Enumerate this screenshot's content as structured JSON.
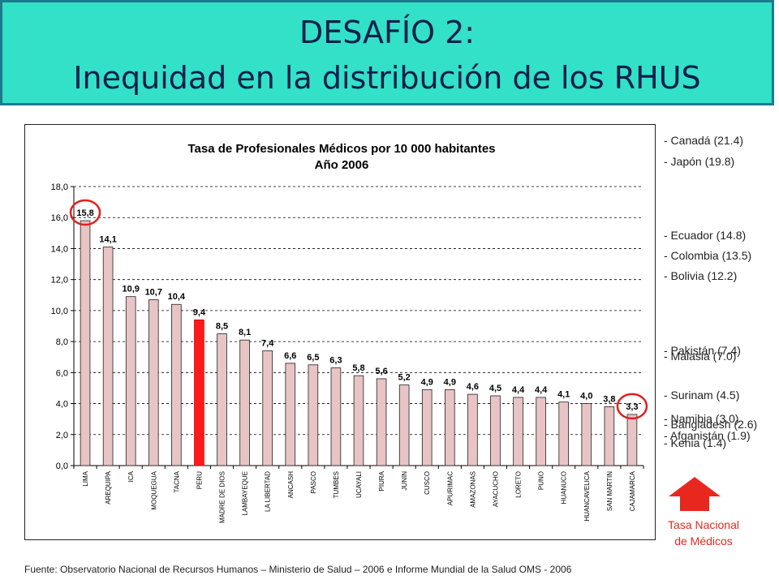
{
  "header": {
    "title_line1": "DESAFÍO 2:",
    "title_line2": "Inequidad en la distribución de los RHUS"
  },
  "chart_data": {
    "type": "bar",
    "title_line1": "Tasa de Profesionales Médicos por 10 000 habitantes",
    "title_line2": "Año 2006",
    "categories": [
      "LIMA",
      "AREQUIPA",
      "ICA",
      "MOQUEGUA",
      "TACNA",
      "PERU",
      "MADRE DE DIOS",
      "LAMBAYEQUE",
      "LA LIBERTAD",
      "ANCASH",
      "PASCO",
      "TUMBES",
      "UCAYALI",
      "PIURA",
      "JUNIN",
      "CUSCO",
      "APURIMAC",
      "AMAZONAS",
      "AYACUCHO",
      "LORETO",
      "PUNO",
      "HUANUCO",
      "HUANCAVELICA",
      "SAN MARTIN",
      "CAJAMARCA"
    ],
    "values": [
      15.8,
      14.1,
      10.9,
      10.7,
      10.4,
      9.4,
      8.5,
      8.1,
      7.4,
      6.6,
      6.5,
      6.3,
      5.8,
      5.6,
      5.2,
      4.9,
      4.9,
      4.6,
      4.5,
      4.4,
      4.4,
      4.1,
      4.0,
      3.8,
      3.3
    ],
    "value_labels": [
      "15,8",
      "14,1",
      "10,9",
      "10,7",
      "10,4",
      "9,4",
      "8,5",
      "8,1",
      "7,4",
      "6,6",
      "6,5",
      "6,3",
      "5,8",
      "5,6",
      "5,2",
      "4,9",
      "4,9",
      "4,6",
      "4,5",
      "4,4",
      "4,4",
      "4,1",
      "4,0",
      "3,8",
      "3,3"
    ],
    "highlight_category": "PERU",
    "circled_categories": [
      "LIMA",
      "CAJAMARCA"
    ],
    "ylim": [
      0,
      18
    ],
    "yticks": [
      "0,0",
      "2,0",
      "4,0",
      "6,0",
      "8,0",
      "10,0",
      "12,0",
      "14,0",
      "16,0",
      "18,0"
    ],
    "grid": true,
    "bar_color": "#e8c4c4",
    "highlight_color": "#ff1a1a",
    "circle_color": "#e02020"
  },
  "comparisons": [
    {
      "label": "- Canadá (21.4)",
      "value": 21.4
    },
    {
      "label": "- Japón (19.8)",
      "value": 19.8
    },
    {
      "label": "- Ecuador (14.8)",
      "value": 14.8
    },
    {
      "label": "- Colombia (13.5)",
      "value": 13.5
    },
    {
      "label": "- Bolivia (12.2)",
      "value": 12.2
    },
    {
      "label": "- Pakistán (7.4)",
      "value": 7.4
    },
    {
      "label": "- Malasia (7.0)",
      "value": 7.0
    },
    {
      "label": "- Surinam (4.5)",
      "value": 4.5
    },
    {
      "label": "- Namibia (3.0)",
      "value": 3.0
    },
    {
      "label": "- Bangladesh (2.6)",
      "value": 2.6
    },
    {
      "label": "- Afganistán (1.9)",
      "value": 1.9
    },
    {
      "label": "- Kenia (1.4)",
      "value": 1.4
    }
  ],
  "legend": {
    "arrow_icon": "up-arrow-icon",
    "line1": "Tasa Nacional",
    "line2": "de Médicos",
    "color": "#e8281e"
  },
  "footer": {
    "source": "Fuente: Observatorio Nacional de Recursos Humanos – Ministerio de Salud – 2006 e Informe Mundial de la Salud OMS - 2006"
  }
}
